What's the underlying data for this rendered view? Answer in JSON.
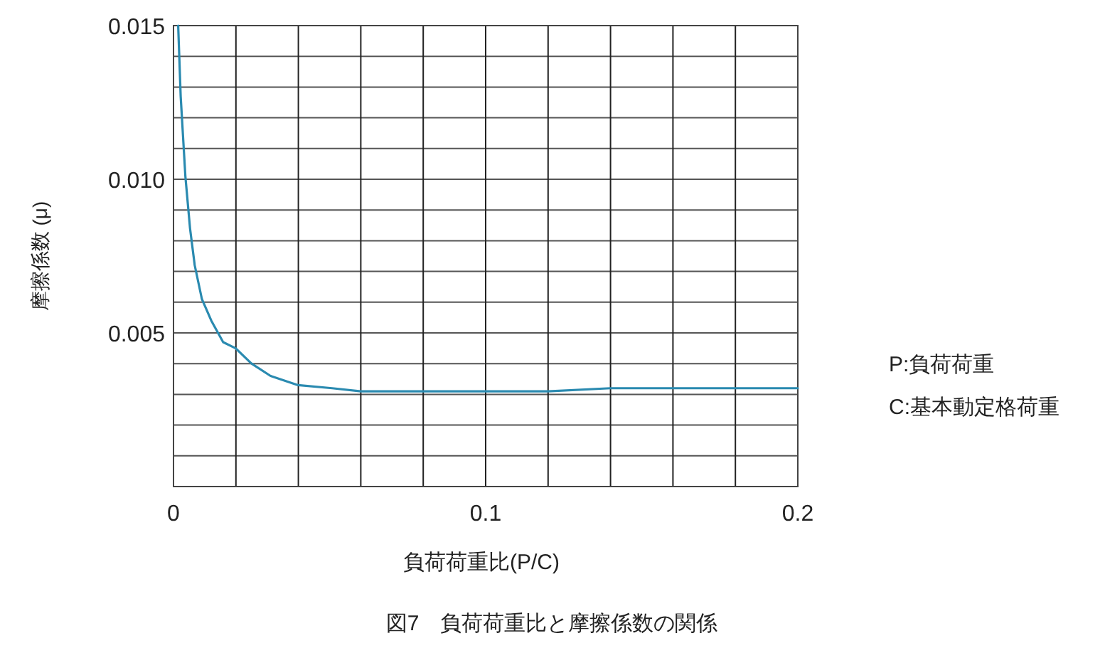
{
  "chart_data": {
    "type": "line",
    "title": "図7　負荷荷重比と摩擦係数の関係",
    "xlabel": "負荷荷重比(P/C)",
    "ylabel": "摩擦係数 (μ)",
    "annotations": [
      "P:負荷荷重",
      "C:基本動定格荷重"
    ],
    "x": [
      0.0015,
      0.0023,
      0.0038,
      0.0053,
      0.0068,
      0.0091,
      0.0121,
      0.0159,
      0.0199,
      0.025,
      0.0311,
      0.0399,
      0.0508,
      0.06,
      0.08,
      0.1,
      0.12,
      0.14,
      0.16,
      0.18,
      0.2
    ],
    "series": [
      {
        "color": "#2a8ab0",
        "values": [
          0.015,
          0.0127,
          0.0101,
          0.0084,
          0.0072,
          0.0061,
          0.0054,
          0.0047,
          0.0045,
          0.004,
          0.0036,
          0.0033,
          0.0032,
          0.0031,
          0.0031,
          0.0031,
          0.0031,
          0.0032,
          0.0032,
          0.0032,
          0.0032
        ]
      }
    ],
    "xlim": [
      0,
      0.2
    ],
    "ylim": [
      0,
      0.015
    ],
    "xticks": [
      0,
      {
        "value": 0.02,
        "label": null
      },
      {
        "value": 0.04,
        "label": null
      },
      {
        "value": 0.06,
        "label": null
      },
      {
        "value": 0.08,
        "label": null
      },
      0.1,
      {
        "value": 0.12,
        "label": null
      },
      {
        "value": 0.14,
        "label": null
      },
      {
        "value": 0.16,
        "label": null
      },
      {
        "value": 0.18,
        "label": null
      },
      0.2
    ],
    "yticks": [
      {
        "value": 0.001,
        "label": null
      },
      {
        "value": 0.002,
        "label": null
      },
      {
        "value": 0.003,
        "label": null
      },
      {
        "value": 0.004,
        "label": null
      },
      0.005,
      {
        "value": 0.006,
        "label": null
      },
      {
        "value": 0.007,
        "label": null
      },
      {
        "value": 0.008,
        "label": null
      },
      {
        "value": 0.009,
        "label": null
      },
      {
        "value": 0.01,
        "label": "0.010"
      },
      {
        "value": 0.011,
        "label": null
      },
      {
        "value": 0.012,
        "label": null
      },
      {
        "value": 0.013,
        "label": null
      },
      {
        "value": 0.014,
        "label": null
      },
      0.015
    ],
    "grid": true,
    "marker": "none",
    "line_style": "solid"
  }
}
